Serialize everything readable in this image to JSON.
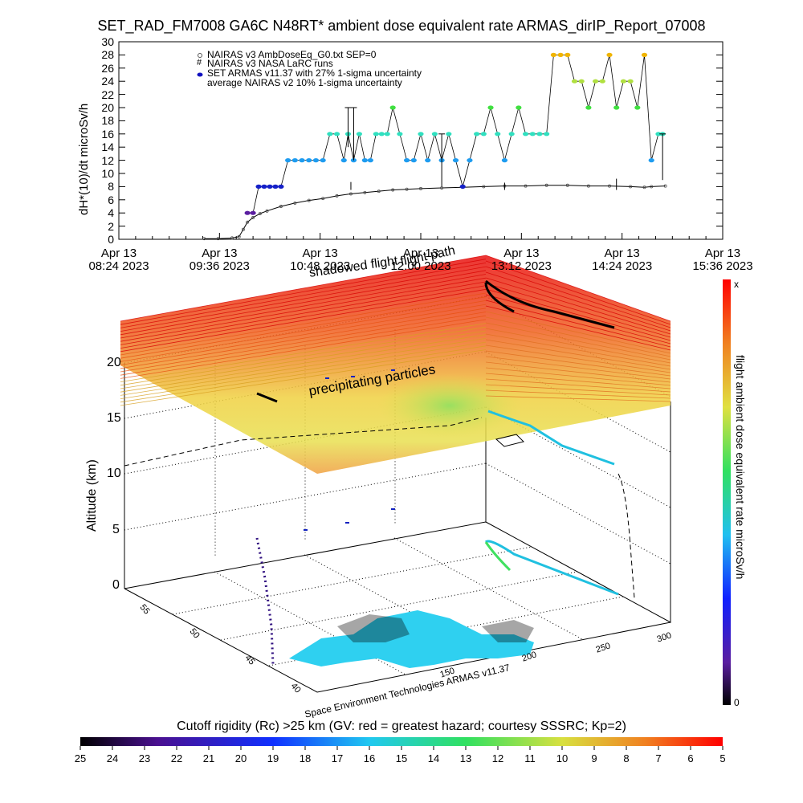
{
  "chart_data": [
    {
      "type": "scatter",
      "title": "SET_RAD_FM7008  GA6C N48RT* ambient dose equivalent rate ARMAS_dirIP_Report_07008",
      "ylabel": "dH*(10)/dt microSv/h",
      "ylim": [
        0,
        30
      ],
      "yticks": [
        "0",
        "2",
        "4",
        "6",
        "8",
        "10",
        "12",
        "14",
        "16",
        "18",
        "20",
        "22",
        "24",
        "26",
        "28",
        "30"
      ],
      "xlim_minutes": [
        504,
        936
      ],
      "xticks": [
        {
          "top": "Apr 13",
          "bottom": "08:24 2023"
        },
        {
          "top": "Apr 13",
          "bottom": "09:36 2023"
        },
        {
          "top": "Apr 13",
          "bottom": "10:48 2023"
        },
        {
          "top": "Apr 13",
          "bottom": "12:00 2023"
        },
        {
          "top": "Apr 13",
          "bottom": "13:12 2023"
        },
        {
          "top": "Apr 13",
          "bottom": "14:24 2023"
        },
        {
          "top": "Apr 13",
          "bottom": "15:36 2023"
        }
      ],
      "legend": [
        "NAIRAS v3 AmbDoseEq_G0.txt SEP=0",
        "NAIRAS v3 NASA LaRC runs",
        "SET ARMAS v11.37 with 27% 1-sigma uncertainty",
        "average NAIRAS v2 10% 1-sigma uncertainty"
      ],
      "series": [
        {
          "name": "NAIRAS v3 AmbDoseEq_G0.txt SEP=0",
          "x": [
            565,
            575,
            585,
            590,
            593,
            596,
            600,
            605,
            610,
            620,
            630,
            640,
            650,
            660,
            670,
            680,
            690,
            700,
            710,
            720,
            735,
            750,
            765,
            780,
            795,
            810,
            825,
            840,
            855,
            870,
            880,
            885,
            895
          ],
          "y": [
            0.1,
            0.1,
            0.2,
            0.4,
            1.5,
            2.6,
            3.3,
            3.9,
            4.3,
            5.0,
            5.5,
            5.9,
            6.2,
            6.6,
            6.9,
            7.1,
            7.3,
            7.5,
            7.6,
            7.7,
            7.8,
            7.9,
            8.0,
            8.1,
            8.1,
            8.2,
            8.2,
            8.1,
            8.1,
            8.0,
            7.9,
            8.0,
            8.1
          ]
        },
        {
          "name": "SET ARMAS v11.37 with 27% 1-sigma uncertainty",
          "x": [
            596,
            600,
            604,
            608,
            612,
            616,
            620,
            625,
            630,
            635,
            640,
            645,
            650,
            655,
            660,
            665,
            668,
            672,
            676,
            680,
            684,
            688,
            692,
            696,
            700,
            705,
            710,
            715,
            720,
            725,
            730,
            735,
            740,
            745,
            750,
            755,
            760,
            765,
            770,
            775,
            780,
            785,
            790,
            795,
            800,
            805,
            810,
            815,
            820,
            825,
            830,
            835,
            840,
            845,
            850,
            855,
            860,
            865,
            870,
            875,
            880,
            885,
            890,
            893
          ],
          "y": [
            4,
            4,
            8,
            8,
            8,
            8,
            8,
            12,
            12,
            12,
            12,
            12,
            12,
            16,
            16,
            12,
            16,
            12,
            16,
            12,
            12,
            16,
            16,
            16,
            20,
            16,
            12,
            12,
            16,
            12,
            16,
            12,
            16,
            12,
            8,
            12,
            16,
            16,
            20,
            16,
            12,
            16,
            20,
            16,
            16,
            16,
            16,
            28,
            28,
            28,
            24,
            24,
            20,
            24,
            24,
            28,
            20,
            24,
            24,
            20,
            28,
            12,
            16,
            16
          ]
        }
      ]
    },
    {
      "type": "scatter",
      "zlabel": "Altitude (km)",
      "zticks": [
        "0",
        "5",
        "10",
        "15",
        "20"
      ],
      "lat_ticks": [
        "40",
        "45",
        "50",
        "55"
      ],
      "lon_ticks": [
        "150",
        "200",
        "250",
        "300"
      ],
      "annotations": [
        "precipitating particles",
        "flight path",
        "shadowed flight"
      ],
      "credit": "Space Environment Technologies ARMAS v11.37",
      "colorbar_label": "flight ambient dose equivalent rate microSv/h",
      "colorbar_top": "x",
      "colorbar_bottom": "0"
    },
    {
      "type": "heatmap",
      "title": "Cutoff rigidity (Rc) >25 km (GV: red = greatest hazard; courtesy SSSRC; Kp=2)",
      "ticks": [
        "25",
        "24",
        "23",
        "22",
        "21",
        "20",
        "19",
        "18",
        "17",
        "16",
        "15",
        "14",
        "13",
        "12",
        "11",
        "10",
        "9",
        "8",
        "7",
        "6",
        "5"
      ]
    }
  ]
}
